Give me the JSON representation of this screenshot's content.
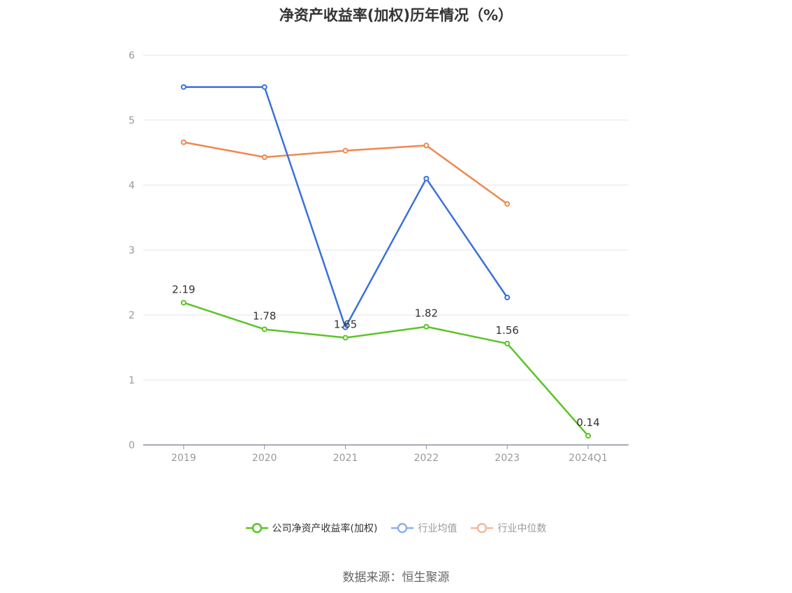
{
  "title": "净资产收益率(加权)历年情况（%）",
  "source": "数据来源：恒生聚源",
  "chart_data": {
    "type": "line",
    "categories": [
      "2019",
      "2020",
      "2021",
      "2022",
      "2023",
      "2024Q1"
    ],
    "ylim": [
      0,
      6
    ],
    "yticks": [
      0,
      1,
      2,
      3,
      4,
      5,
      6
    ],
    "grid": true,
    "legend_position": "bottom",
    "series": [
      {
        "name": "公司净资产收益率(加权)",
        "color": "#5ac426",
        "values": [
          2.19,
          1.78,
          1.65,
          1.82,
          1.56,
          0.14
        ],
        "labels": [
          "2.19",
          "1.78",
          "1.65",
          "1.82",
          "1.56",
          "0.14"
        ],
        "legend_active": true
      },
      {
        "name": "行业均值",
        "color": "#3a70dc",
        "legend_color": "#90aee8",
        "values": [
          5.51,
          5.51,
          1.81,
          4.1,
          2.27,
          null
        ],
        "legend_active": false
      },
      {
        "name": "行业中位数",
        "color": "#f0874f",
        "legend_color": "#f5b79a",
        "values": [
          4.66,
          4.43,
          4.53,
          4.61,
          3.71,
          null
        ],
        "legend_active": false
      }
    ]
  }
}
